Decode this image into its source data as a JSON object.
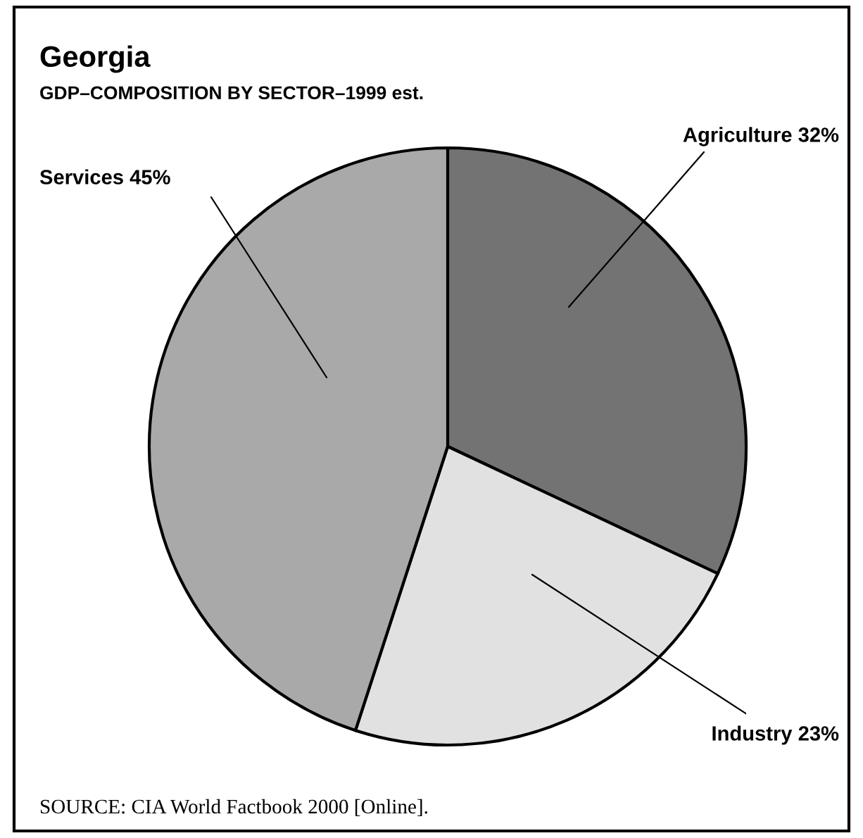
{
  "chart_data": {
    "type": "pie",
    "title": "Georgia",
    "subtitle": "GDP–COMPOSITION BY SECTOR–1999 est.",
    "categories": [
      "Agriculture",
      "Industry",
      "Services"
    ],
    "values": [
      32,
      23,
      45
    ],
    "value_labels": [
      "32%",
      "23%",
      "45%"
    ],
    "colors": [
      "#737373",
      "#e1e1e1",
      "#a9a9a9"
    ],
    "annotations": [
      "SOURCE: CIA World Factbook 2000 [Online]."
    ]
  }
}
